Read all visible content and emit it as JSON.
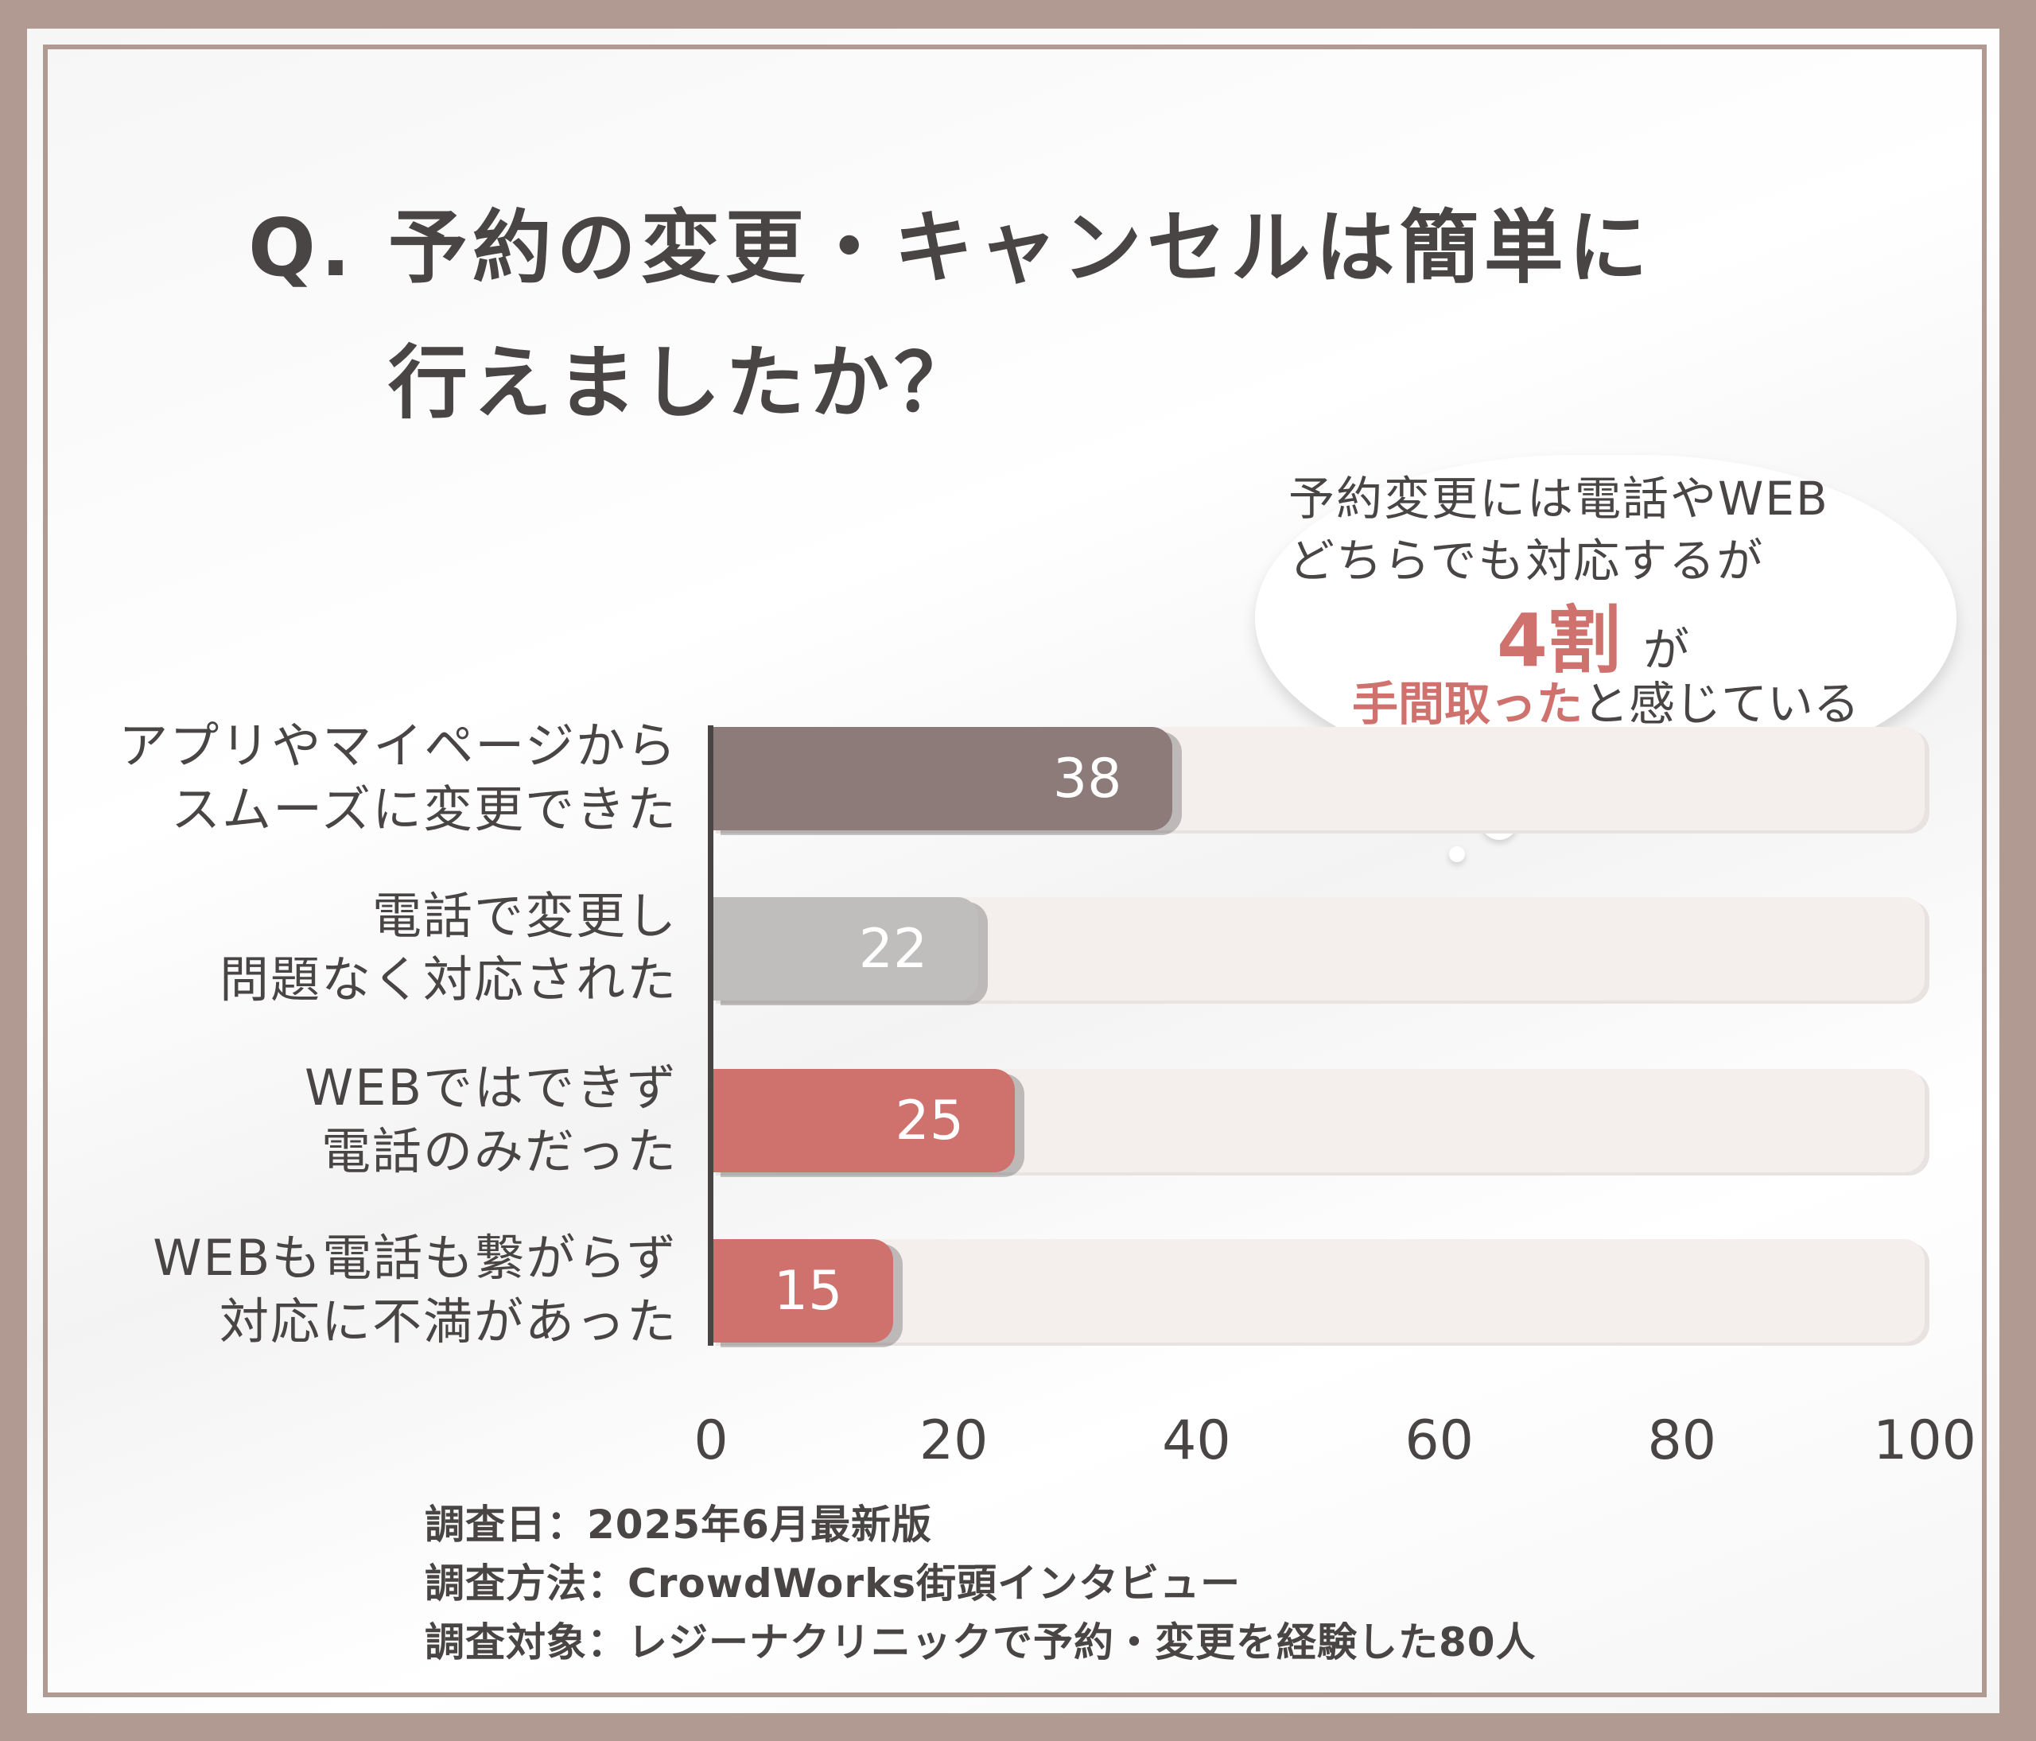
{
  "title_line1": "Q. 予約の変更・キャンセルは簡単に",
  "title_line2": "行えましたか？",
  "callout": {
    "line1": "予約変更には電話やWEB",
    "line2": "どちらでも対応するが",
    "highlight_number": "4割",
    "highlight_suffix": "が",
    "line4_highlight": "手間取った",
    "line4_rest": "と感じている"
  },
  "chart_data": {
    "type": "bar",
    "orientation": "horizontal",
    "categories": [
      "アプリやマイページから\nスムーズに変更できた",
      "電話で変更し\n問題なく対応された",
      "WEBではできず\n電話のみだった",
      "WEBも電話も繋がらず\n対応に不満があった"
    ],
    "values": [
      38,
      22,
      25,
      15
    ],
    "colors": [
      "#8c7b79",
      "#c0bebd",
      "#cf716d",
      "#cf716d"
    ],
    "track_color": "#f4eeed",
    "xlim": [
      0,
      100
    ],
    "xticks": [
      "0",
      "20",
      "40",
      "60",
      "80",
      "100"
    ],
    "grid": false
  },
  "notes": {
    "date": "調査日：2025年6月最新版",
    "method": "調査方法：CrowdWorks街頭インタビュー",
    "target": "調査対象：レジーナクリニックで予約・変更を経験した80人"
  }
}
